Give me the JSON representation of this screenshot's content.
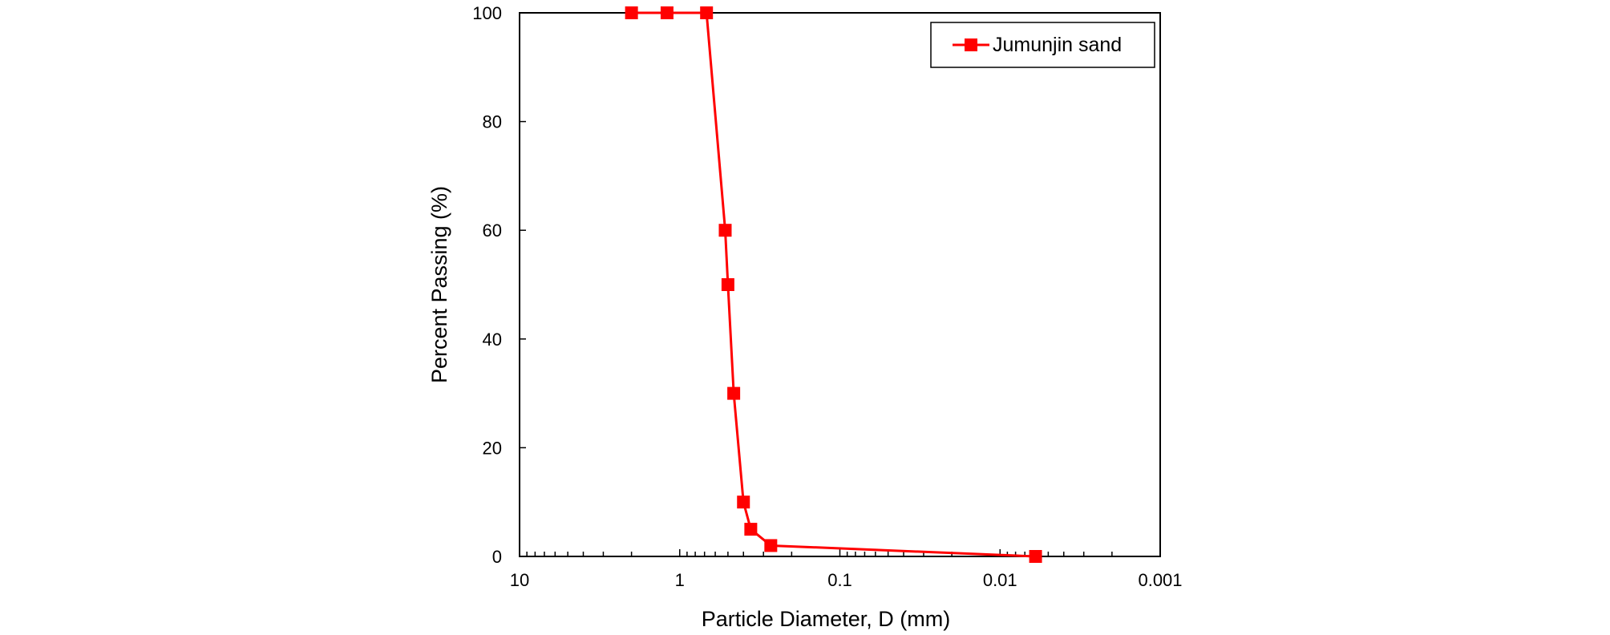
{
  "chart_data": {
    "type": "line",
    "title": "",
    "xlabel": "Particle Diameter, D (mm)",
    "ylabel": "Percent Passing (%)",
    "x_scale": "log",
    "x_reversed": true,
    "xlim": [
      10,
      0.001
    ],
    "ylim": [
      0,
      100
    ],
    "x_ticks": [
      10,
      1,
      0.1,
      0.01,
      0.001
    ],
    "x_tick_labels": [
      "10",
      "1",
      "0.1",
      "0.01",
      "0.001"
    ],
    "y_ticks": [
      0,
      20,
      40,
      60,
      80,
      100
    ],
    "y_tick_labels": [
      "0",
      "20",
      "40",
      "60",
      "80",
      "100"
    ],
    "grid": false,
    "legend": {
      "position": "top-right"
    },
    "series": [
      {
        "name": "Jumunjin sand",
        "color": "#ff0000",
        "marker": "square",
        "x": [
          2,
          1.2,
          0.68,
          0.52,
          0.5,
          0.46,
          0.4,
          0.36,
          0.27,
          0.006
        ],
        "y": [
          100,
          100,
          100,
          60,
          50,
          30,
          10,
          5,
          2,
          0
        ]
      }
    ]
  }
}
